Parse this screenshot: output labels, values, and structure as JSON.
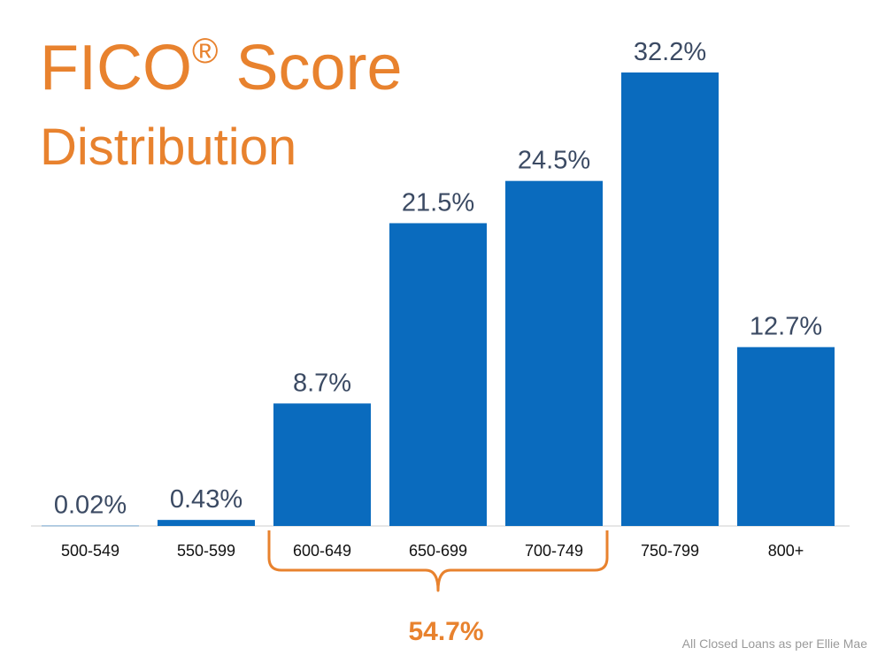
{
  "title": "FICO",
  "title_mark": "®",
  "title_rest": " Score",
  "subtitle": "Distribution",
  "footnote": "All Closed Loans as per Ellie Mae",
  "bracket_label": "54.7%",
  "colors": {
    "bar": "#0A6BBE",
    "accent": "#E8822E",
    "label": "#3B4A63",
    "axis": "#cccccc"
  },
  "chart_data": {
    "type": "bar",
    "categories": [
      "500-549",
      "550-599",
      "600-649",
      "650-699",
      "700-749",
      "750-799",
      "800+"
    ],
    "values": [
      0.02,
      0.43,
      8.7,
      21.5,
      24.5,
      32.2,
      12.7
    ],
    "labels": [
      "0.02%",
      "0.43%",
      "8.7%",
      "21.5%",
      "24.5%",
      "32.2%",
      "12.7%"
    ],
    "ylim": [
      0,
      35
    ],
    "grid": false,
    "bracket": {
      "from_category": "600-649",
      "to_category": "700-749",
      "label": "54.7%"
    }
  }
}
